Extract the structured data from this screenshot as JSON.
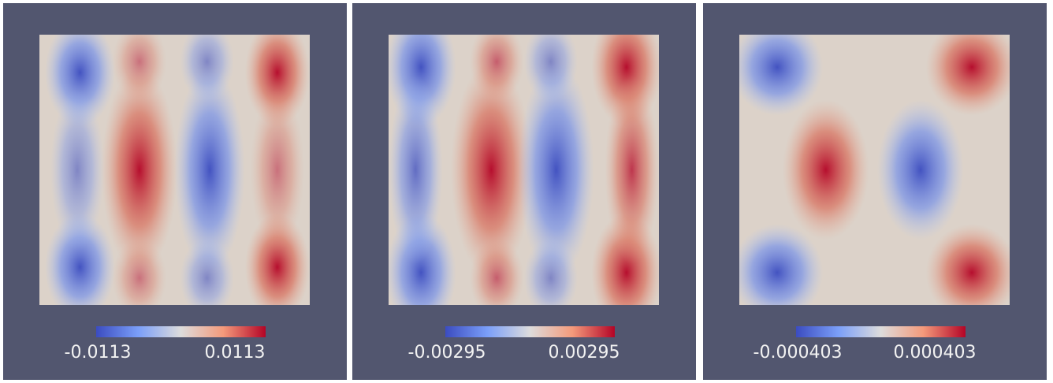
{
  "panels": [
    {
      "min_label": -0.0113,
      "max_label": 0.0113
    },
    {
      "min_label": -0.00295,
      "max_label": 0.00295
    },
    {
      "min_label": -0.000403,
      "max_label": 0.000403
    }
  ]
}
